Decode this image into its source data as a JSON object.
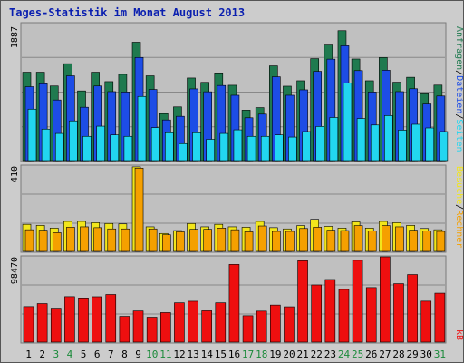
{
  "title": "Tages-Statistik im Monat August 2013",
  "colors": {
    "background": "#c0c0c0",
    "border": "#555555",
    "title": "#0a1fb0",
    "anfragen": "#1f7a4f",
    "dateien": "#1d4de6",
    "seiten": "#22d6f0",
    "besuche": "#f2e61b",
    "rechner": "#f5a000",
    "kb": "#ee0f0f",
    "weekday_tick": "#000000",
    "weekend_tick": "#1a8a3a"
  },
  "chart_data": [
    {
      "type": "bar",
      "title": "",
      "ylabel": "1887",
      "ylim": [
        0,
        1887
      ],
      "categories": [
        "1",
        "2",
        "3",
        "4",
        "5",
        "6",
        "7",
        "8",
        "9",
        "10",
        "11",
        "12",
        "13",
        "14",
        "15",
        "16",
        "17",
        "18",
        "19",
        "20",
        "21",
        "22",
        "23",
        "24",
        "25",
        "26",
        "27",
        "28",
        "29",
        "30",
        "31"
      ],
      "series": [
        {
          "name": "Anfragen",
          "values": [
            1218,
            1218,
            1028,
            1335,
            960,
            1218,
            1088,
            1188,
            1631,
            1168,
            647,
            740,
            1138,
            1078,
            1208,
            1038,
            695,
            730,
            1305,
            1025,
            1100,
            1405,
            1592,
            1790,
            1400,
            1100,
            1420,
            1080,
            1148,
            920,
            1040
          ]
        },
        {
          "name": "Dateien",
          "values": [
            1018,
            1058,
            835,
            1168,
            735,
            1028,
            950,
            945,
            1421,
            980,
            560,
            610,
            988,
            948,
            1035,
            900,
            590,
            640,
            1155,
            900,
            975,
            1230,
            1398,
            1582,
            1240,
            945,
            1245,
            950,
            990,
            780,
            890
          ]
        },
        {
          "name": "Seiten",
          "values": [
            709,
            434,
            374,
            547,
            334,
            474,
            354,
            334,
            884,
            454,
            384,
            234,
            384,
            294,
            374,
            424,
            334,
            334,
            354,
            324,
            400,
            470,
            594,
            1070,
            580,
            490,
            620,
            420,
            500,
            450,
            400
          ]
        }
      ]
    },
    {
      "type": "bar",
      "title": "",
      "ylabel": "410",
      "ylim": [
        0,
        410
      ],
      "categories": [
        "1",
        "2",
        "3",
        "4",
        "5",
        "6",
        "7",
        "8",
        "9",
        "10",
        "11",
        "12",
        "13",
        "14",
        "15",
        "16",
        "17",
        "18",
        "19",
        "20",
        "21",
        "22",
        "23",
        "24",
        "25",
        "26",
        "27",
        "28",
        "29",
        "30",
        "31"
      ],
      "series": [
        {
          "name": "Besuche",
          "values": [
            130,
            125,
            112,
            144,
            144,
            138,
            134,
            132,
            406,
            118,
            86,
            100,
            134,
            118,
            130,
            118,
            116,
            144,
            114,
            108,
            124,
            154,
            120,
            112,
            142,
            112,
            144,
            138,
            125,
            110,
            104
          ]
        },
        {
          "name": "Rechner",
          "values": [
            104,
            102,
            90,
            116,
            118,
            114,
            108,
            108,
            400,
            108,
            80,
            94,
            106,
            106,
            112,
            104,
            94,
            122,
            96,
            96,
            110,
            116,
            102,
            100,
            124,
            98,
            124,
            118,
            102,
            98,
            96
          ]
        }
      ]
    },
    {
      "type": "bar",
      "title": "",
      "ylabel": "98470",
      "ylim": [
        0,
        98470
      ],
      "categories": [
        "1",
        "2",
        "3",
        "4",
        "5",
        "6",
        "7",
        "8",
        "9",
        "10",
        "11",
        "12",
        "13",
        "14",
        "15",
        "16",
        "17",
        "18",
        "19",
        "20",
        "21",
        "22",
        "23",
        "24",
        "25",
        "26",
        "27",
        "28",
        "29",
        "30",
        "31"
      ],
      "series": [
        {
          "name": "KB",
          "values": [
            41000,
            44500,
            39200,
            52500,
            51000,
            52400,
            55000,
            29800,
            36000,
            28800,
            34100,
            45400,
            47200,
            36200,
            45400,
            89700,
            30500,
            35800,
            42800,
            40800,
            93900,
            66000,
            72300,
            60800,
            94400,
            63000,
            98470,
            67500,
            78000,
            47300,
            56500
          ]
        }
      ]
    }
  ],
  "right_label_top": {
    "anfragen": "Anfragen",
    "dateien": "Dateien",
    "seiten": "Seiten",
    "sep": "/"
  },
  "right_label_mid": {
    "besuche": "Besuche",
    "rechner": "Rechner",
    "sep": "/"
  },
  "right_label_bot": {
    "kb": "kB"
  },
  "weekend_days": [
    "3",
    "4",
    "10",
    "11",
    "17",
    "18",
    "24",
    "25",
    "31"
  ]
}
